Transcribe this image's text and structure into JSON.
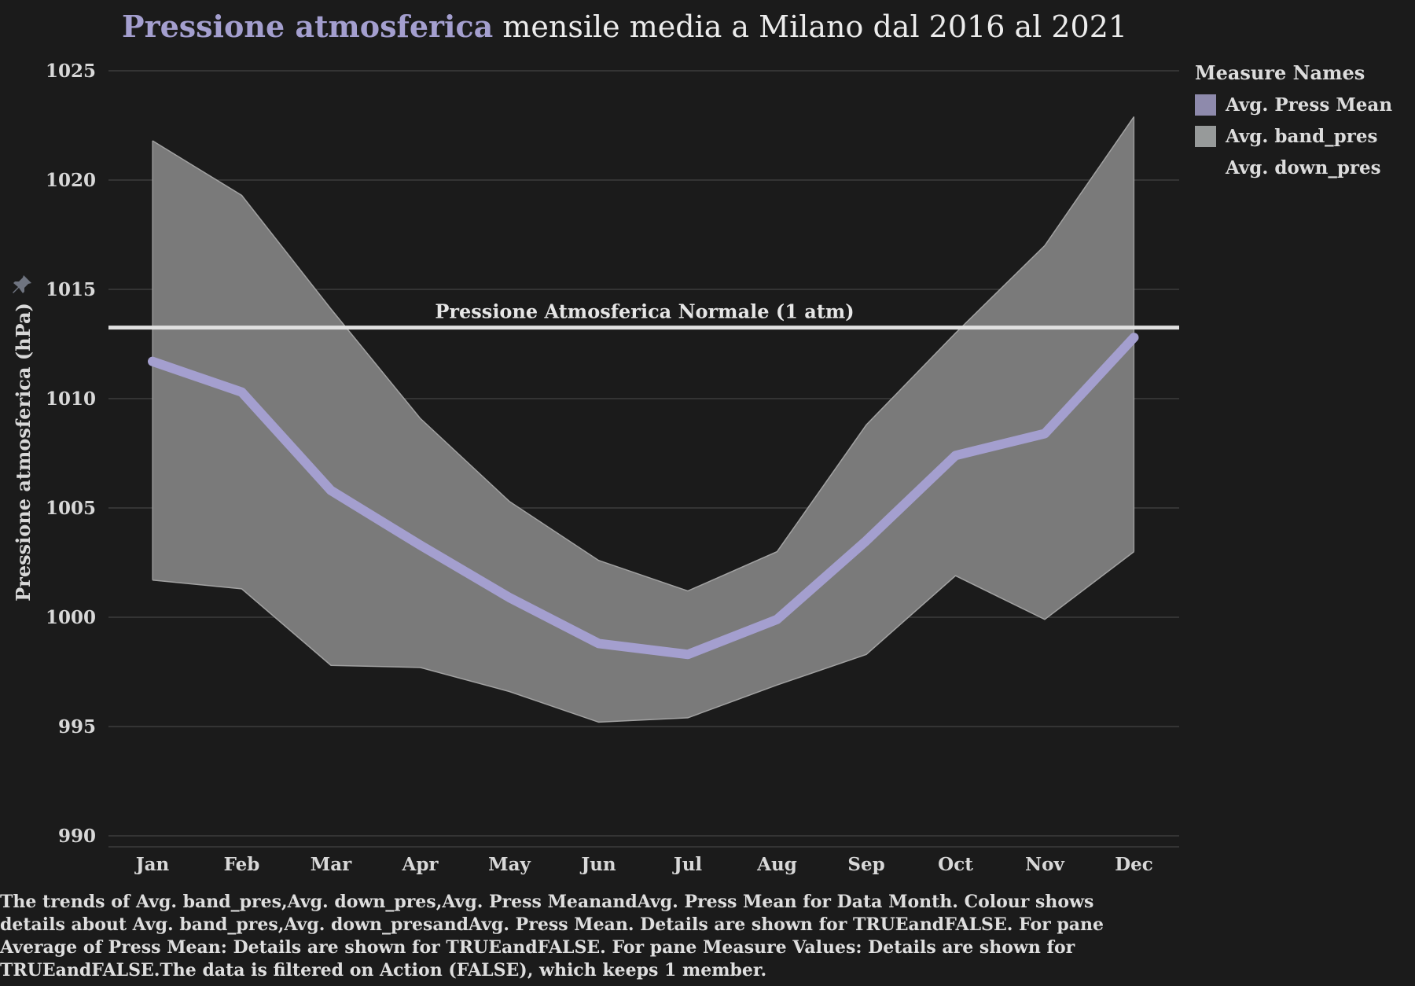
{
  "title": {
    "highlight": "Pressione atmosferica",
    "rest": " mensile media a Milano dal 2016 al 2021"
  },
  "colors": {
    "background": "#1b1b1b",
    "mean_line": "#a49fcf",
    "band_fill": "#7a7a7a",
    "band_edge": "#a2a2a2",
    "title_highlight": "#a49fcf",
    "ref_line": "#e0e0e0",
    "gridline": "#444444",
    "legend_mean": "#8e8aac",
    "legend_band": "#979a9a"
  },
  "legend": {
    "title": "Measure Names",
    "items": [
      {
        "label": "Avg. Press Mean",
        "color": "#8e8aac"
      },
      {
        "label": "Avg. band_pres",
        "color": "#979a9a"
      },
      {
        "label": "Avg. down_pres",
        "color": ""
      }
    ]
  },
  "caption": "The trends of Avg. band_pres,Avg. down_pres,Avg. Press MeanandAvg. Press Mean for Data Month. Colour shows details about Avg. band_pres,Avg. down_presandAvg. Press Mean. Details are shown for TRUEandFALSE. For pane Average of Press Mean: Details are shown for TRUEandFALSE. For pane Measure Values: Details are shown for TRUEandFALSE.The data is filtered on Action (FALSE), which keeps 1 member.",
  "icons": {
    "pin": "pin-icon"
  },
  "chart_data": {
    "type": "area",
    "title": "Pressione atmosferica mensile media a Milano dal 2016 al 2021",
    "ylabel": "Pressione atmosferica (hPa)",
    "xlabel": "",
    "categories": [
      "Jan",
      "Feb",
      "Mar",
      "Apr",
      "May",
      "Jun",
      "Jul",
      "Aug",
      "Sep",
      "Oct",
      "Nov",
      "Dec"
    ],
    "ylim": [
      990,
      1025
    ],
    "yticks": [
      990,
      995,
      1000,
      1005,
      1010,
      1015,
      1020,
      1025
    ],
    "grid": true,
    "legend_position": "right",
    "series": [
      {
        "name": "Avg. Press Mean",
        "type": "line",
        "values": [
          1011.7,
          1010.3,
          1005.8,
          1003.3,
          1000.9,
          998.8,
          998.3,
          999.9,
          1003.5,
          1007.4,
          1008.4,
          1012.8
        ]
      },
      {
        "name": "Avg. band_pres",
        "type": "band_upper",
        "values": [
          1021.8,
          1019.3,
          1014.1,
          1009.1,
          1005.3,
          1002.6,
          1001.2,
          1003.0,
          1008.8,
          1013.0,
          1017.0,
          1022.9
        ]
      },
      {
        "name": "Avg. down_pres",
        "type": "band_lower",
        "values": [
          1001.7,
          1001.3,
          997.8,
          997.7,
          996.6,
          995.2,
          995.4,
          996.9,
          998.3,
          1001.9,
          999.9,
          1003.0
        ]
      }
    ],
    "reference_line": {
      "label": "Pressione Atmosferica Normale (1 atm)",
      "value": 1013.25
    }
  }
}
